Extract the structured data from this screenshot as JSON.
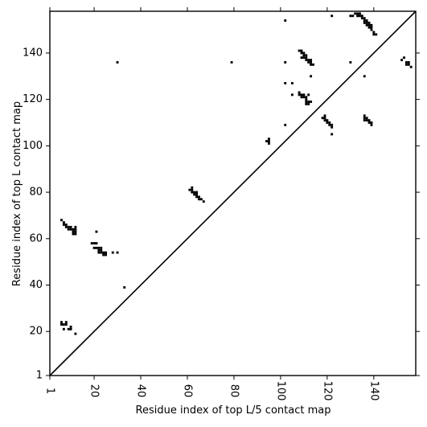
{
  "chart_data": {
    "type": "heatmap",
    "title": "",
    "xlabel": "Residue index of top L/5 contact map",
    "ylabel": "Residue index of top L contact map",
    "xlim": [
      1,
      158
    ],
    "ylim": [
      1,
      158
    ],
    "x_ticks": [
      1,
      20,
      40,
      60,
      80,
      100,
      120,
      140
    ],
    "y_ticks": [
      1,
      20,
      40,
      60,
      80,
      100,
      120,
      140
    ],
    "x_tick_labels": [
      "1",
      "20",
      "40",
      "60",
      "80",
      "100",
      "120",
      "140"
    ],
    "y_tick_labels": [
      "1",
      "20",
      "40",
      "60",
      "80",
      "100",
      "120",
      "140"
    ],
    "diagonal": true,
    "point_color": "#000000",
    "grid": false,
    "contacts": [
      [
        6,
        68
      ],
      [
        7,
        67
      ],
      [
        7,
        66
      ],
      [
        8,
        66
      ],
      [
        8,
        65
      ],
      [
        9,
        65
      ],
      [
        9,
        64
      ],
      [
        10,
        64
      ],
      [
        10,
        65
      ],
      [
        11,
        64
      ],
      [
        11,
        63
      ],
      [
        12,
        63
      ],
      [
        12,
        62
      ],
      [
        11,
        62
      ],
      [
        12,
        65
      ],
      [
        12,
        64
      ],
      [
        19,
        58
      ],
      [
        20,
        58
      ],
      [
        21,
        58
      ],
      [
        20,
        56
      ],
      [
        21,
        56
      ],
      [
        22,
        56
      ],
      [
        22,
        55
      ],
      [
        23,
        55
      ],
      [
        23,
        54
      ],
      [
        24,
        54
      ],
      [
        24,
        53
      ],
      [
        25,
        53
      ],
      [
        25,
        54
      ],
      [
        23,
        56
      ],
      [
        22,
        54
      ],
      [
        21,
        63
      ],
      [
        28,
        54
      ],
      [
        30,
        54
      ],
      [
        6,
        23
      ],
      [
        6,
        24
      ],
      [
        7,
        23
      ],
      [
        8,
        23
      ],
      [
        8,
        24
      ],
      [
        7,
        21
      ],
      [
        9,
        21
      ],
      [
        10,
        21
      ],
      [
        10,
        22
      ],
      [
        12,
        19
      ],
      [
        33,
        39
      ],
      [
        61,
        81
      ],
      [
        62,
        82
      ],
      [
        62,
        81
      ],
      [
        62,
        80
      ],
      [
        63,
        80
      ],
      [
        63,
        79
      ],
      [
        64,
        80
      ],
      [
        64,
        79
      ],
      [
        64,
        78
      ],
      [
        65,
        78
      ],
      [
        65,
        77
      ],
      [
        66,
        77
      ],
      [
        67,
        76
      ],
      [
        30,
        136
      ],
      [
        79,
        136
      ],
      [
        95,
        103
      ],
      [
        95,
        102
      ],
      [
        95,
        101
      ],
      [
        94,
        102
      ],
      [
        102,
        154
      ],
      [
        102,
        136
      ],
      [
        102,
        127
      ],
      [
        102,
        109
      ],
      [
        105,
        127
      ],
      [
        105,
        122
      ],
      [
        108,
        123
      ],
      [
        108,
        122
      ],
      [
        108,
        141
      ],
      [
        109,
        141
      ],
      [
        109,
        140
      ],
      [
        110,
        140
      ],
      [
        110,
        139
      ],
      [
        110,
        138
      ],
      [
        109,
        138
      ],
      [
        111,
        139
      ],
      [
        111,
        138
      ],
      [
        111,
        137
      ],
      [
        112,
        137
      ],
      [
        112,
        136
      ],
      [
        113,
        137
      ],
      [
        113,
        136
      ],
      [
        113,
        135
      ],
      [
        114,
        135
      ],
      [
        113,
        130
      ],
      [
        109,
        122
      ],
      [
        109,
        121
      ],
      [
        110,
        122
      ],
      [
        110,
        121
      ],
      [
        111,
        121
      ],
      [
        111,
        120
      ],
      [
        111,
        119
      ],
      [
        111,
        118
      ],
      [
        112,
        118
      ],
      [
        112,
        119
      ],
      [
        113,
        119
      ],
      [
        112,
        122
      ],
      [
        118,
        112
      ],
      [
        119,
        112
      ],
      [
        119,
        111
      ],
      [
        119,
        113
      ],
      [
        120,
        111
      ],
      [
        120,
        110
      ],
      [
        121,
        110
      ],
      [
        121,
        109
      ],
      [
        122,
        109
      ],
      [
        122,
        108
      ],
      [
        122,
        105
      ],
      [
        122,
        156
      ],
      [
        130,
        156
      ],
      [
        131,
        156
      ],
      [
        132,
        157
      ],
      [
        133,
        157
      ],
      [
        133,
        156
      ],
      [
        134,
        156
      ],
      [
        134,
        157
      ],
      [
        135,
        155
      ],
      [
        135,
        156
      ],
      [
        136,
        155
      ],
      [
        136,
        154
      ],
      [
        136,
        153
      ],
      [
        137,
        154
      ],
      [
        137,
        153
      ],
      [
        137,
        152
      ],
      [
        138,
        152
      ],
      [
        138,
        153
      ],
      [
        138,
        151
      ],
      [
        139,
        151
      ],
      [
        139,
        152
      ],
      [
        139,
        150
      ],
      [
        140,
        149
      ],
      [
        140,
        148
      ],
      [
        141,
        148
      ],
      [
        130,
        136
      ],
      [
        136,
        130
      ],
      [
        136,
        113
      ],
      [
        136,
        112
      ],
      [
        137,
        112
      ],
      [
        137,
        111
      ],
      [
        138,
        111
      ],
      [
        138,
        110
      ],
      [
        139,
        110
      ],
      [
        139,
        109
      ],
      [
        136,
        111
      ],
      [
        152,
        137
      ],
      [
        153,
        138
      ],
      [
        154,
        136
      ],
      [
        154,
        135
      ],
      [
        155,
        136
      ],
      [
        155,
        135
      ],
      [
        156,
        134
      ]
    ]
  }
}
